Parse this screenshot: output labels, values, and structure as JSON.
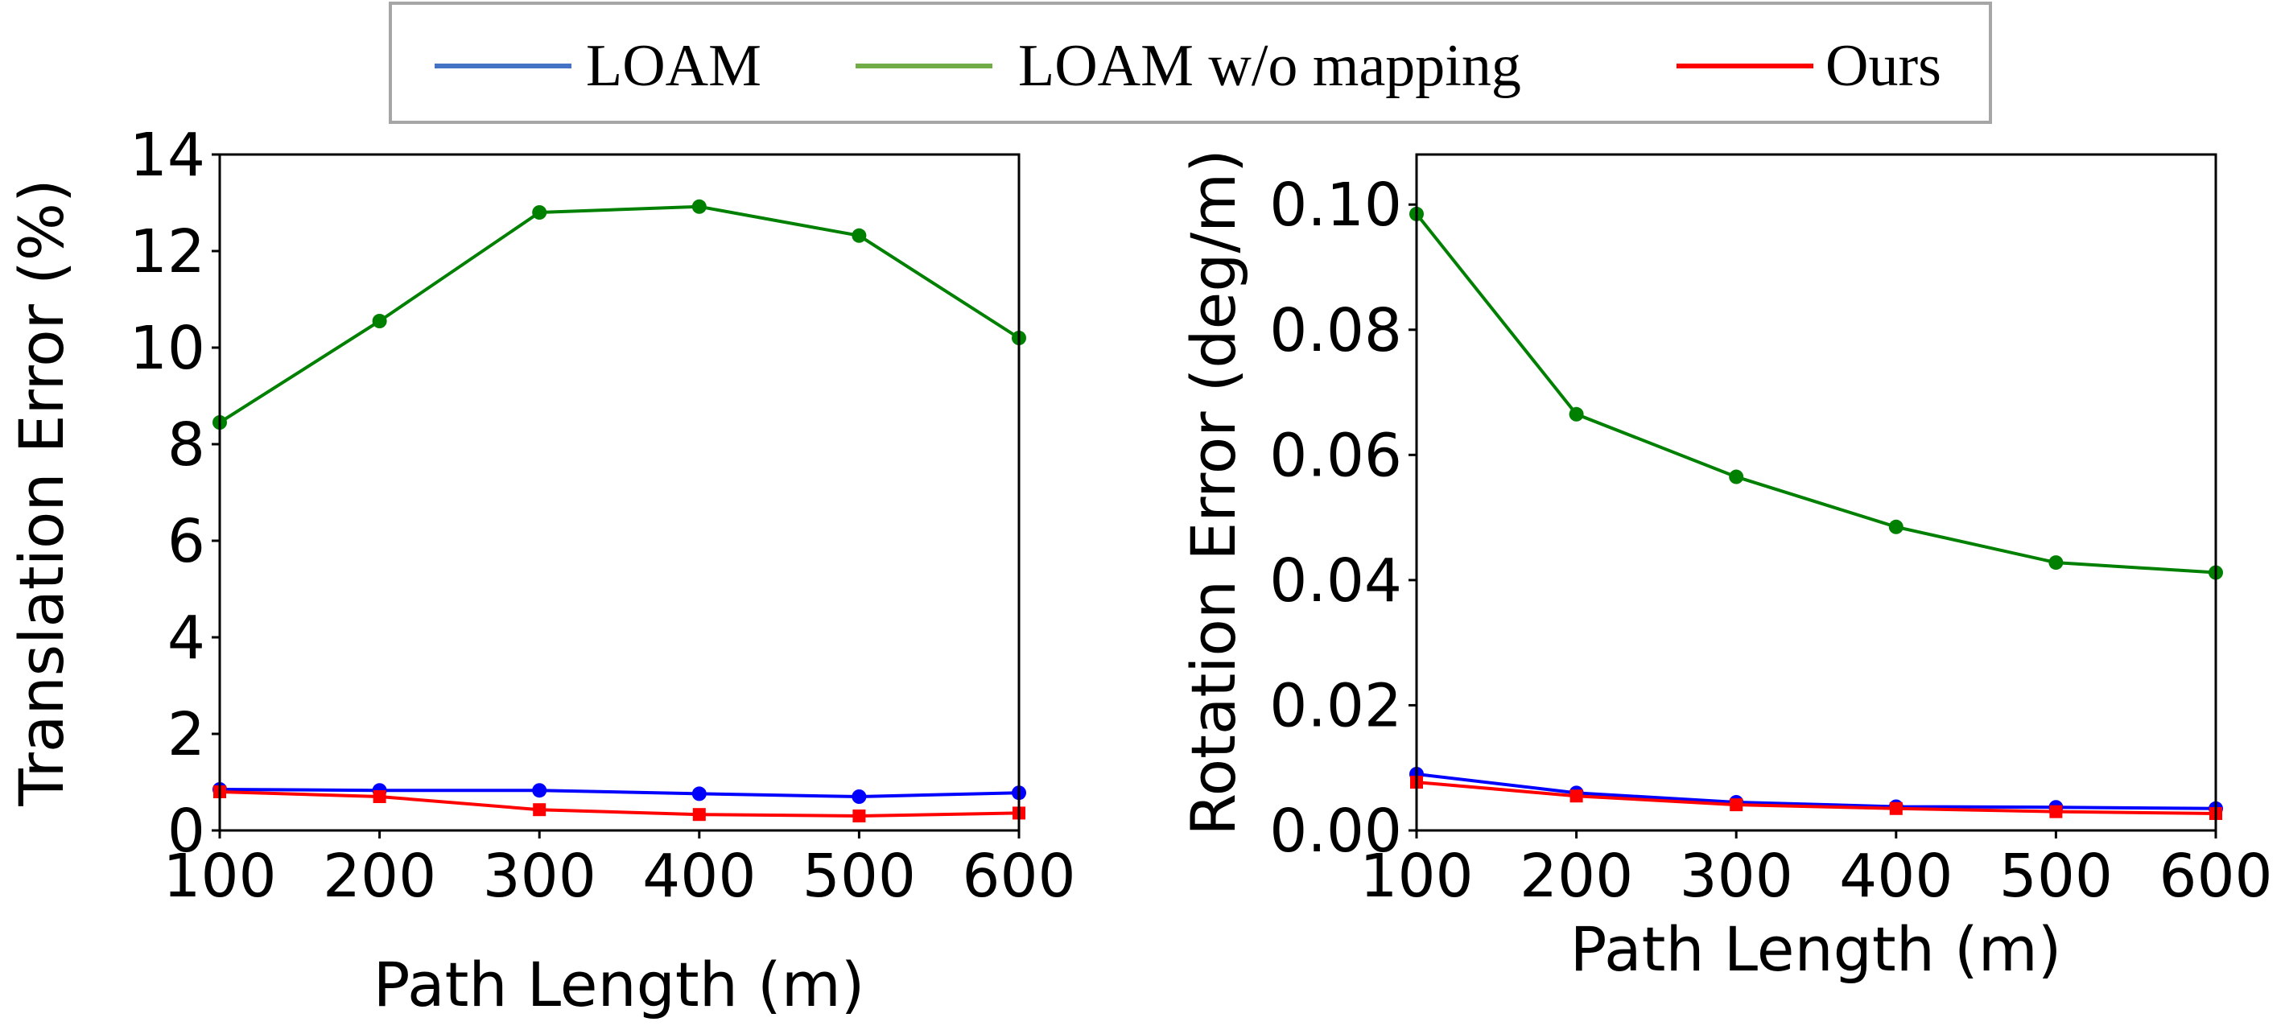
{
  "legend": {
    "entries": [
      {
        "label": "LOAM",
        "color": "#4472c4"
      },
      {
        "label": "LOAM w/o mapping",
        "color": "#70ad47"
      },
      {
        "label": "Ours",
        "color": "#ff0000"
      }
    ]
  },
  "chart_data": [
    {
      "type": "line",
      "title": "",
      "xlabel": "Path Length (m)",
      "ylabel": "Translation Error (%)",
      "x": [
        100,
        200,
        300,
        400,
        500,
        600
      ],
      "xlim": [
        100,
        600
      ],
      "ylim": [
        0,
        14
      ],
      "xticks": [
        "100",
        "200",
        "300",
        "400",
        "500",
        "600"
      ],
      "yticks": [
        "0",
        "2",
        "4",
        "6",
        "8",
        "10",
        "12",
        "14"
      ],
      "ytick_values": [
        0,
        2,
        4,
        6,
        8,
        10,
        12,
        14
      ],
      "grid": false,
      "series": [
        {
          "name": "LOAM",
          "color": "#0000ff",
          "marker": "circle",
          "values": [
            0.85,
            0.83,
            0.83,
            0.76,
            0.7,
            0.78
          ]
        },
        {
          "name": "LOAM w/o mapping",
          "color": "#008000",
          "marker": "circle",
          "values": [
            8.45,
            10.55,
            12.8,
            12.92,
            12.32,
            10.2
          ]
        },
        {
          "name": "Ours",
          "color": "#ff0000",
          "marker": "square",
          "values": [
            0.8,
            0.7,
            0.43,
            0.33,
            0.3,
            0.36
          ]
        }
      ]
    },
    {
      "type": "line",
      "title": "",
      "xlabel": "Path Length (m)",
      "ylabel": "Rotation Error (deg/m)",
      "x": [
        100,
        200,
        300,
        400,
        500,
        600
      ],
      "xlim": [
        100,
        600
      ],
      "ylim": [
        0,
        0.108
      ],
      "xticks": [
        "100",
        "200",
        "300",
        "400",
        "500",
        "600"
      ],
      "yticks": [
        "0.00",
        "0.02",
        "0.04",
        "0.06",
        "0.08",
        "0.10"
      ],
      "ytick_values": [
        0,
        0.02,
        0.04,
        0.06,
        0.08,
        0.1
      ],
      "grid": false,
      "series": [
        {
          "name": "LOAM",
          "color": "#0000ff",
          "marker": "circle",
          "values": [
            0.009,
            0.006,
            0.0045,
            0.0038,
            0.0037,
            0.0035
          ]
        },
        {
          "name": "LOAM w/o mapping",
          "color": "#008000",
          "marker": "circle",
          "values": [
            0.0985,
            0.0665,
            0.0565,
            0.0485,
            0.0428,
            0.0412
          ]
        },
        {
          "name": "Ours",
          "color": "#ff0000",
          "marker": "square",
          "values": [
            0.0077,
            0.0055,
            0.0041,
            0.0035,
            0.003,
            0.0027
          ]
        }
      ]
    }
  ]
}
